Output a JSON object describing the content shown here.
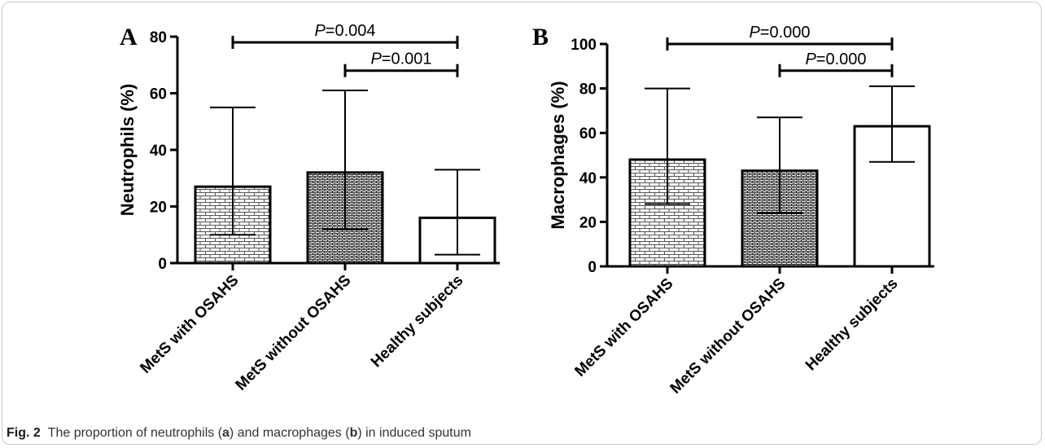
{
  "caption": {
    "fig_label": "Fig. 2",
    "text_1": "The proportion of neutrophils (",
    "a": "a",
    "text_2": ") and macrophages (",
    "b": "b",
    "text_3": ") in induced sputum"
  },
  "colors": {
    "bar_edge": "#000000",
    "dense_brick": "#2a2a2a",
    "light_brick": "#555555",
    "plain_fill": "#ffffff"
  },
  "chart_data": [
    {
      "type": "bar",
      "panel": "A",
      "ylabel": "Neutrophils (%)",
      "categories": [
        "MetS with OSAHS",
        "MetS without OSAHS",
        "Healthy subjects"
      ],
      "values": [
        27,
        32,
        16
      ],
      "error": {
        "lower": [
          10,
          12,
          3
        ],
        "upper": [
          55,
          61,
          33
        ]
      },
      "ylim": [
        0,
        80
      ],
      "yticks": [
        0,
        20,
        40,
        60,
        80
      ],
      "fill_patterns": [
        "light-brick",
        "dense-brick",
        "plain"
      ],
      "comparisons": [
        {
          "from": 0,
          "to": 2,
          "p_label": "P",
          "p_value": "=0.004",
          "y": 78
        },
        {
          "from": 1,
          "to": 2,
          "p_label": "P",
          "p_value": "=0.001",
          "y": 68
        }
      ]
    },
    {
      "type": "bar",
      "panel": "B",
      "ylabel": "Macrophages (%)",
      "categories": [
        "MetS with OSAHS",
        "MetS without OSAHS",
        "Healthy subjects"
      ],
      "values": [
        48,
        43,
        63
      ],
      "error": {
        "lower": [
          28,
          24,
          47
        ],
        "upper": [
          80,
          67,
          81
        ]
      },
      "ylim": [
        0,
        100
      ],
      "yticks": [
        0,
        20,
        40,
        60,
        80,
        100
      ],
      "fill_patterns": [
        "light-brick",
        "dense-brick",
        "plain"
      ],
      "comparisons": [
        {
          "from": 0,
          "to": 2,
          "p_label": "P",
          "p_value": "=0.000",
          "y": 100
        },
        {
          "from": 1,
          "to": 2,
          "p_label": "P",
          "p_value": "=0.000",
          "y": 88
        }
      ]
    }
  ]
}
